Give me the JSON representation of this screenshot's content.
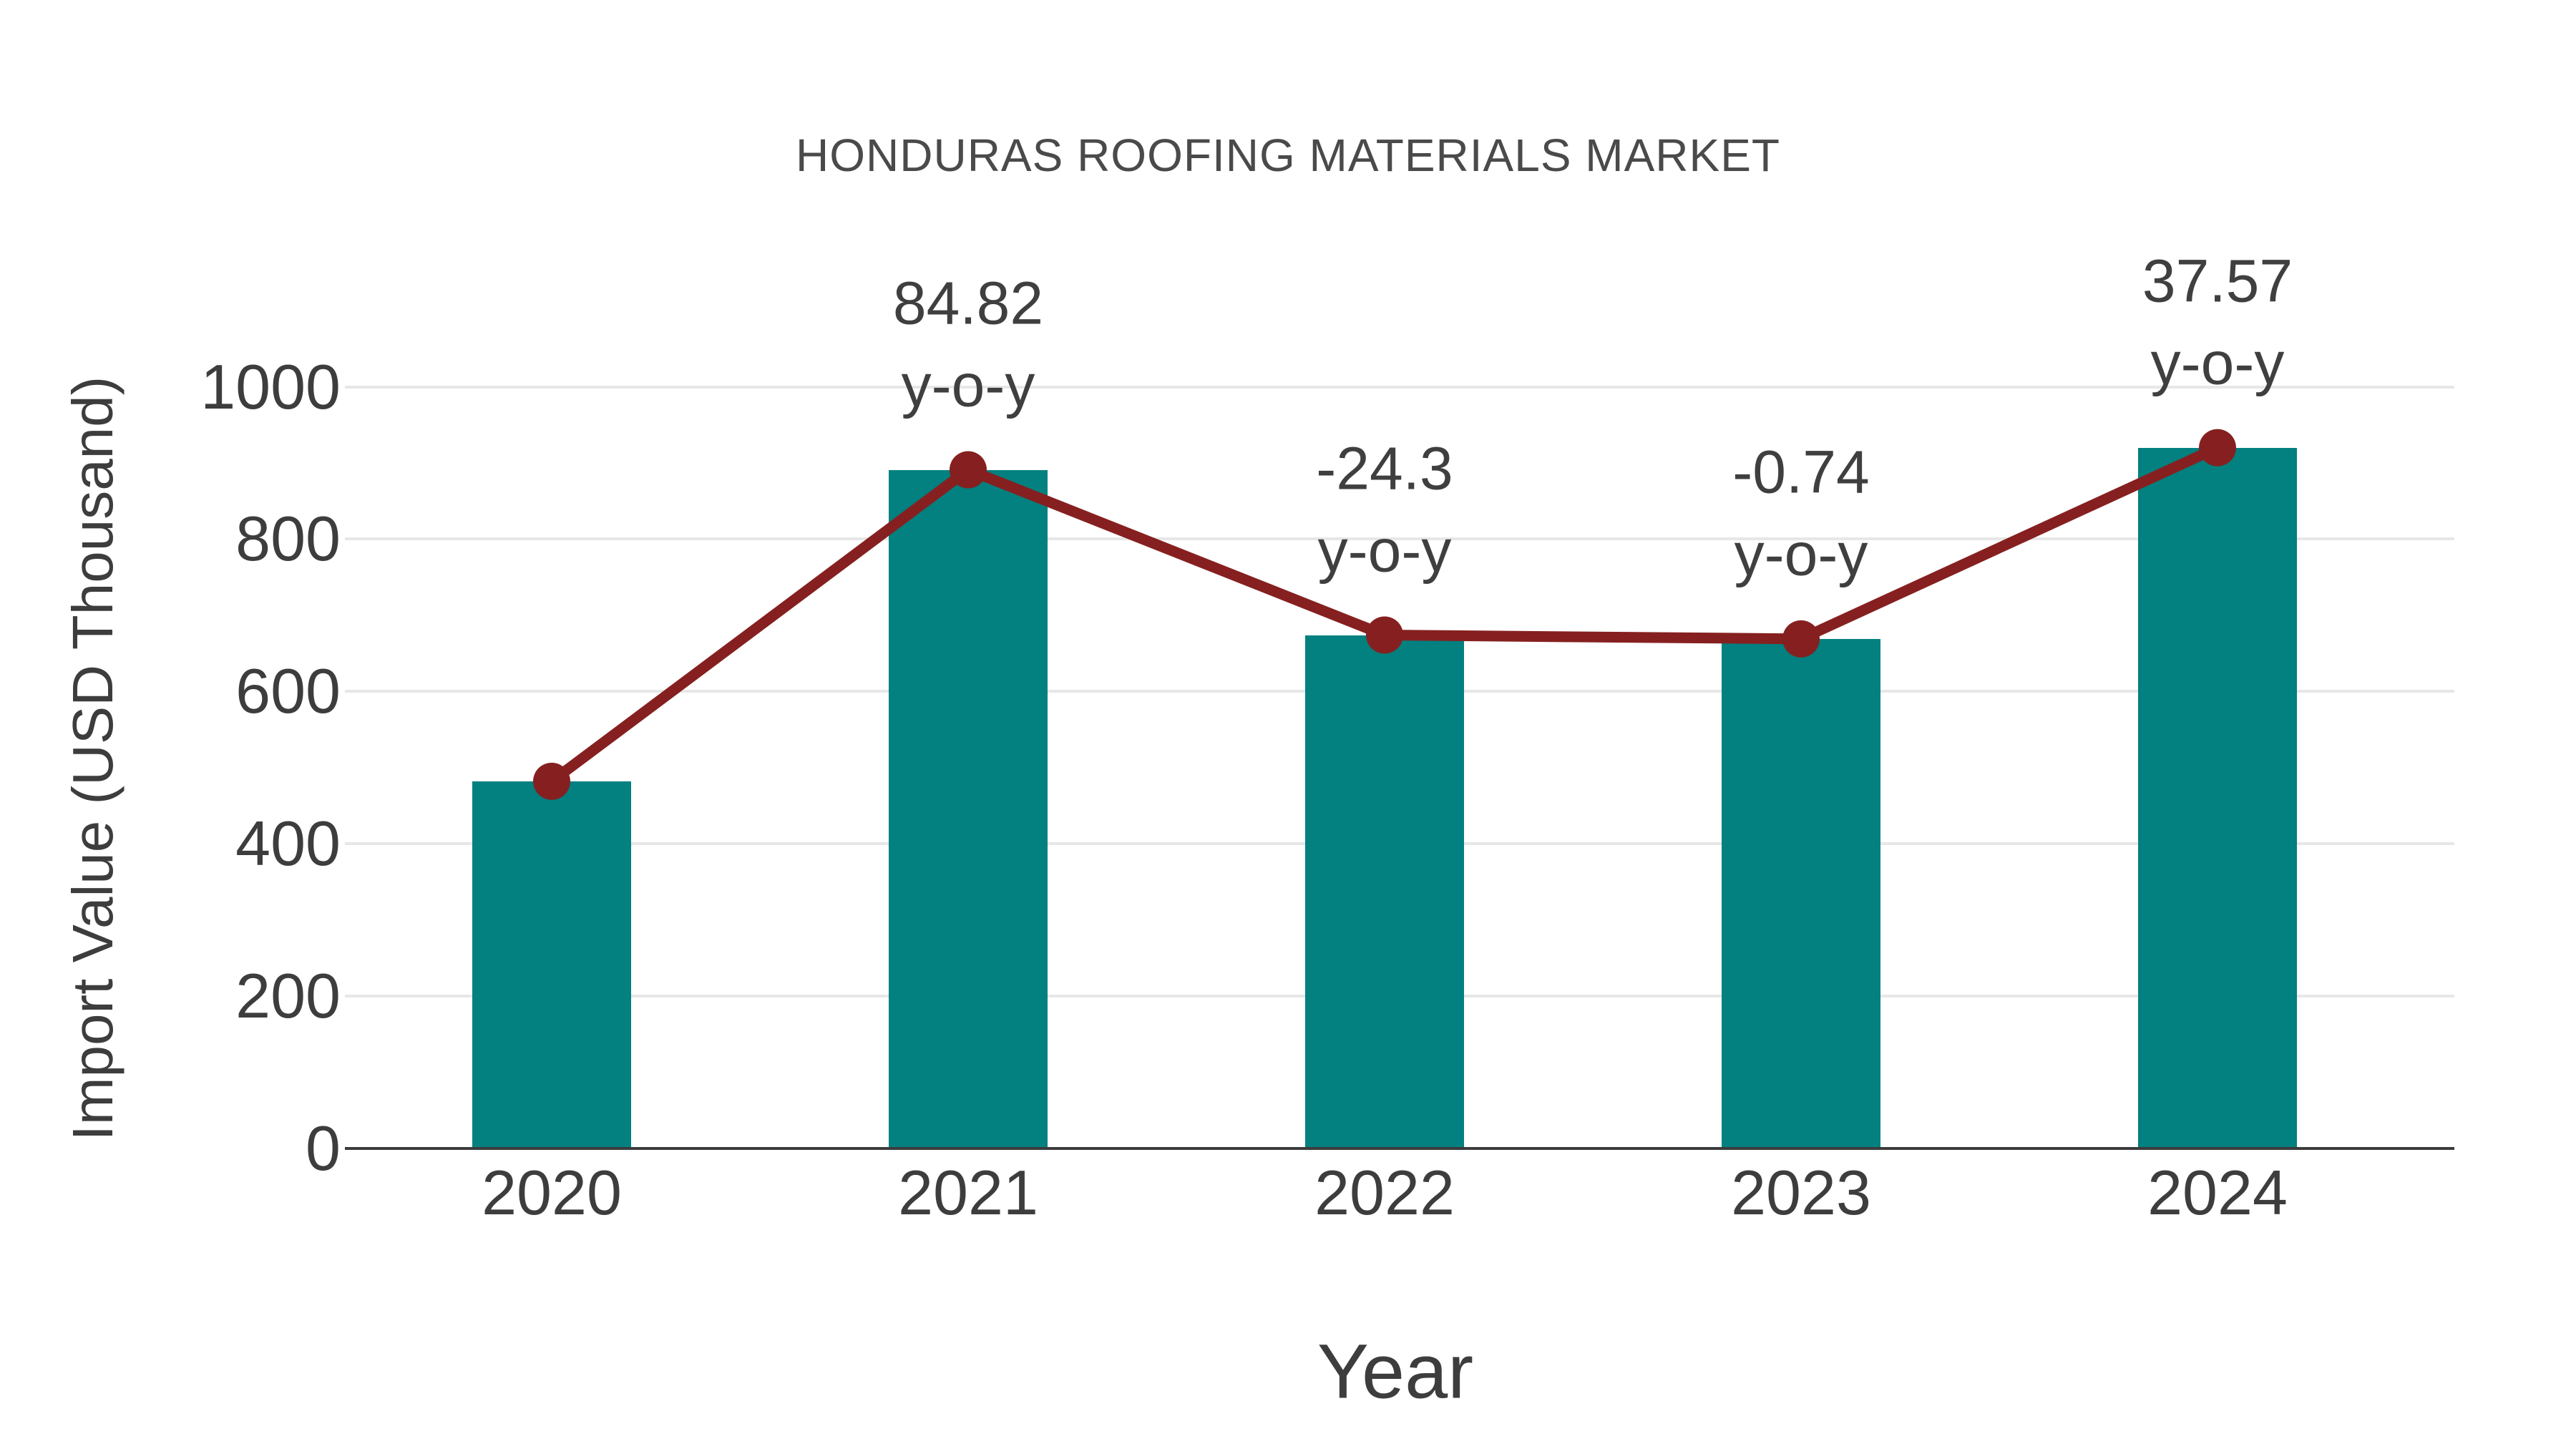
{
  "title": "HONDURAS ROOFING MATERIALS MARKET",
  "chart_data": {
    "type": "bar",
    "title": "HONDURAS ROOFING MATERIALS MARKET",
    "categories": [
      "2020",
      "2021",
      "2022",
      "2023",
      "2024"
    ],
    "series": [
      {
        "name": "Import Value bars",
        "type": "bar",
        "values": [
          482,
          891,
          674,
          669,
          920
        ]
      },
      {
        "name": "Import Value trend line",
        "type": "line",
        "values": [
          482,
          891,
          674,
          669,
          920
        ]
      }
    ],
    "annotations": [
      {
        "category": "2021",
        "value": "84.82",
        "suffix": "y-o-y"
      },
      {
        "category": "2022",
        "value": "-24.3",
        "suffix": "y-o-y"
      },
      {
        "category": "2023",
        "value": "-0.74",
        "suffix": "y-o-y"
      },
      {
        "category": "2024",
        "value": "37.57",
        "suffix": "y-o-y"
      }
    ],
    "xlabel": "Year",
    "ylabel": "Import Value (USD Thousand)",
    "yticks": [
      0,
      200,
      400,
      600,
      800,
      1000
    ],
    "ylim": [
      0,
      1000
    ],
    "grid": true,
    "legend": "none",
    "colors": {
      "bar": "#038080",
      "line": "#862020",
      "marker": "#862020",
      "grid": "#e7e7e7",
      "axis": "#3c3c3c",
      "text": "#3d3d3d"
    }
  }
}
